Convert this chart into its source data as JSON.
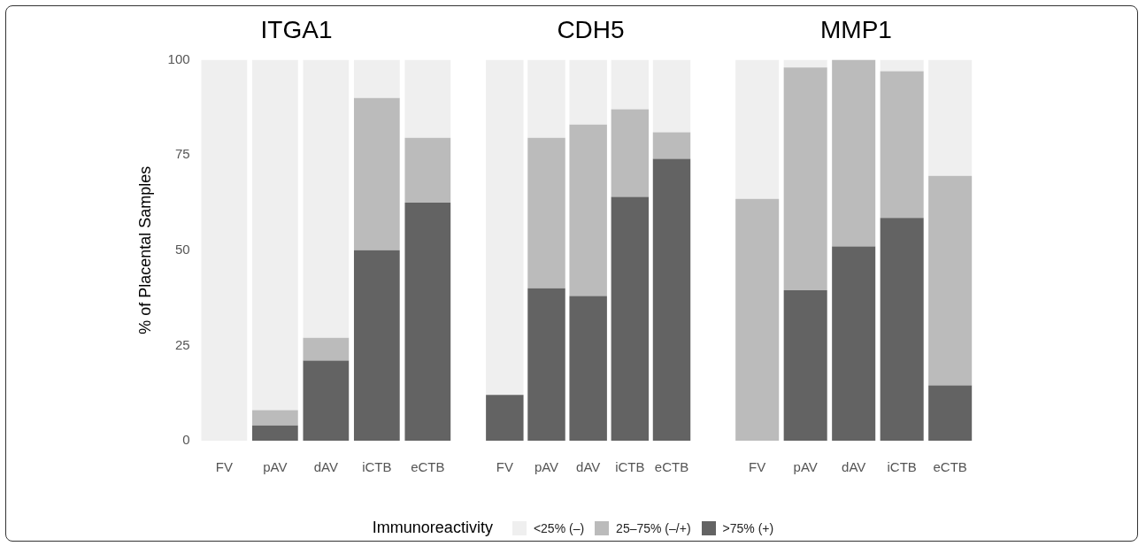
{
  "chart_data": [
    {
      "type": "bar",
      "title": "ITGA1",
      "ylabel": "% of Placental Samples",
      "categories": [
        "FV",
        "pAV",
        "dAV",
        "iCTB",
        "eCTB"
      ],
      "stacked": true,
      "ylim": [
        0,
        100
      ],
      "yticks": [
        0,
        25,
        50,
        75,
        100
      ],
      "grid": false,
      "legend": "bottom",
      "legend_title": "Immunoreactivity",
      "series": [
        {
          "name": ">75% (+)",
          "color": "#636363",
          "values": [
            0,
            4,
            21,
            50,
            62.5
          ]
        },
        {
          "name": "25–75% (–/+)",
          "color": "#bbbbbb",
          "values": [
            0,
            4,
            6,
            40,
            17
          ]
        },
        {
          "name": "<25% (–)",
          "color": "#efefef",
          "values": [
            100,
            92,
            73,
            10,
            20.5
          ]
        }
      ]
    },
    {
      "type": "bar",
      "title": "CDH5",
      "categories": [
        "FV",
        "pAV",
        "dAV",
        "iCTB",
        "eCTB"
      ],
      "stacked": true,
      "ylim": [
        0,
        100
      ],
      "tick_labels": "x",
      "grid": false,
      "series": [
        {
          "color": "#636363",
          "values": [
            12,
            40,
            38,
            64,
            74
          ]
        },
        {
          "color": "#bbbbbb",
          "values": [
            0,
            39.5,
            45,
            23,
            7
          ]
        },
        {
          "color": "#efefef",
          "values": [
            88,
            20.5,
            17,
            13,
            19
          ]
        }
      ]
    },
    {
      "type": "bar",
      "title": "MMP1",
      "categories": [
        "FV",
        "pAV",
        "dAV",
        "iCTB",
        "eCTB"
      ],
      "stacked": true,
      "ylim": [
        0,
        100
      ],
      "tick_labels": "x",
      "grid": false,
      "series": [
        {
          "color": "#636363",
          "values": [
            0,
            39.5,
            51,
            58.5,
            14.5
          ]
        },
        {
          "color": "#bbbbbb",
          "values": [
            63.5,
            58.5,
            49,
            38.5,
            55
          ]
        },
        {
          "color": "#efefef",
          "values": [
            36.5,
            2,
            0,
            3,
            30.5
          ]
        }
      ]
    }
  ]
}
